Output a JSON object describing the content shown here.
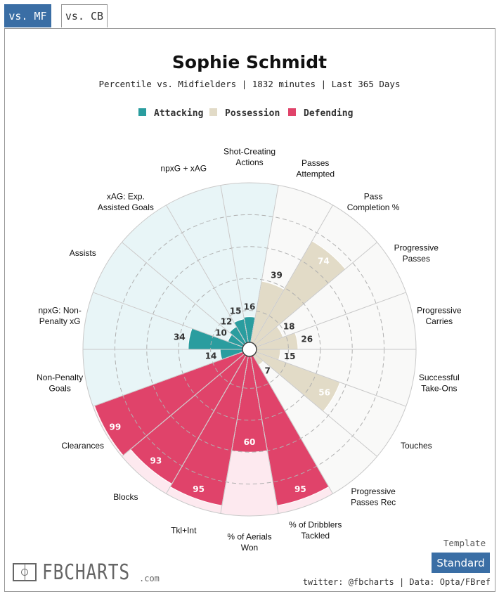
{
  "tabs": [
    {
      "label": "vs. MF",
      "active": true
    },
    {
      "label": "vs. CB",
      "active": false
    }
  ],
  "template": {
    "label": "Template",
    "button": "Standard"
  },
  "credits": "twitter: @fbcharts | Data: Opta/FBref",
  "logo": {
    "text": "FBCHARTS",
    "suffix": ".com"
  },
  "chart_data": {
    "type": "polar-bar",
    "title": "Sophie Schmidt",
    "subtitle": "Percentile vs. Midfielders | 1832 minutes | Last 365 Days",
    "rlim": [
      0,
      100
    ],
    "legend": [
      {
        "name": "Attacking",
        "color": "#2a9d9f"
      },
      {
        "name": "Possession",
        "color": "#e2dbc7"
      },
      {
        "name": "Defending",
        "color": "#e0436a"
      }
    ],
    "category_bg": {
      "Attacking": "#e8f5f7",
      "Possession": "#f9f9f8",
      "Defending": "#fde9ef"
    },
    "metrics": [
      {
        "label": "Shot-Creating Actions",
        "value": 16,
        "group": "Attacking"
      },
      {
        "label": "Passes Attempted",
        "value": 39,
        "group": "Possession"
      },
      {
        "label": "Pass Completion %",
        "value": 74,
        "group": "Possession"
      },
      {
        "label": "Progressive Passes",
        "value": 18,
        "group": "Possession"
      },
      {
        "label": "Progressive Carries",
        "value": 26,
        "group": "Possession"
      },
      {
        "label": "Successful Take-Ons",
        "value": 15,
        "group": "Possession"
      },
      {
        "label": "Touches",
        "value": 56,
        "group": "Possession"
      },
      {
        "label": "Progressive Passes Rec",
        "value": 7,
        "group": "Possession"
      },
      {
        "label": "% of Dribblers Tackled",
        "value": 95,
        "group": "Defending"
      },
      {
        "label": "% of Aerials Won",
        "value": 60,
        "group": "Defending"
      },
      {
        "label": "Tkl+Int",
        "value": 95,
        "group": "Defending"
      },
      {
        "label": "Blocks",
        "value": 93,
        "group": "Defending"
      },
      {
        "label": "Clearances",
        "value": 99,
        "group": "Defending"
      },
      {
        "label": "Non-Penalty Goals",
        "value": 14,
        "group": "Attacking"
      },
      {
        "label": "npxG: Non-Penalty xG",
        "value": 34,
        "group": "Attacking"
      },
      {
        "label": "Assists",
        "value": 10,
        "group": "Attacking"
      },
      {
        "label": "xAG: Exp. Assisted Goals",
        "value": 12,
        "group": "Attacking"
      },
      {
        "label": "npxG + xAG",
        "value": 15,
        "group": "Attacking"
      }
    ],
    "axis_label_lines": [
      [
        "Shot-Creating",
        "Actions"
      ],
      [
        "Passes",
        "Attempted"
      ],
      [
        "Pass",
        "Completion %"
      ],
      [
        "Progressive",
        "Passes"
      ],
      [
        "Progressive",
        "Carries"
      ],
      [
        "Successful",
        "Take-Ons"
      ],
      [
        "Touches"
      ],
      [
        "Progressive",
        "Passes Rec"
      ],
      [
        "% of Dribblers",
        "Tackled"
      ],
      [
        "% of Aerials",
        "Won"
      ],
      [
        "Tkl+Int"
      ],
      [
        "Blocks"
      ],
      [
        "Clearances"
      ],
      [
        "Non-Penalty",
        "Goals"
      ],
      [
        "npxG: Non-",
        "Penalty xG"
      ],
      [
        "Assists"
      ],
      [
        "xAG: Exp.",
        "Assisted Goals"
      ],
      [
        "npxG + xAG"
      ]
    ]
  }
}
